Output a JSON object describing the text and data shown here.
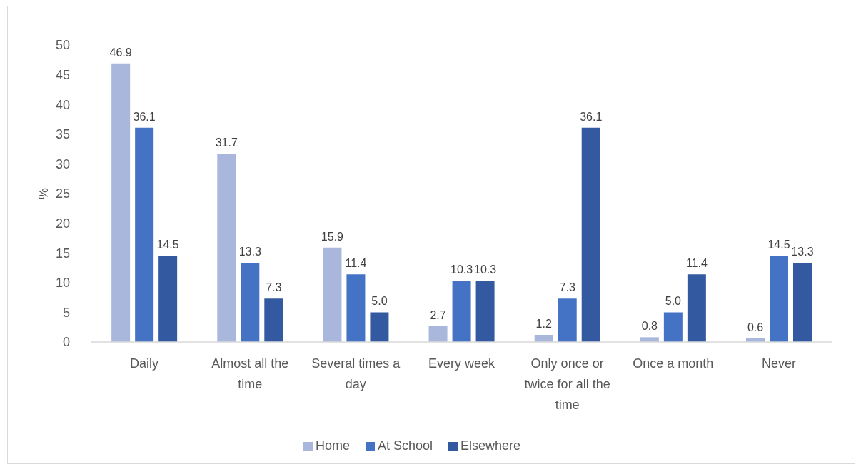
{
  "chart_data": {
    "type": "bar",
    "ylabel": "%",
    "categories": [
      "Daily",
      "Almost all the time",
      "Several times a day",
      "Every week",
      "Only once or twice for all the time",
      "Once a month",
      "Never"
    ],
    "series": [
      {
        "name": "Home",
        "color": "#a9b7dc",
        "values": [
          46.9,
          31.7,
          15.9,
          2.7,
          1.2,
          0.8,
          0.6
        ],
        "value_labels": [
          "46.9",
          "31.7",
          "15.9",
          "2.7",
          "1.2",
          "0.8",
          "0.6"
        ]
      },
      {
        "name": "At School",
        "color": "#4472c4",
        "values": [
          36.1,
          13.3,
          11.4,
          10.3,
          7.3,
          5.0,
          14.5
        ],
        "value_labels": [
          "36.1",
          "13.3",
          "11.4",
          "10.3",
          "7.3",
          "5.0",
          "14.5"
        ]
      },
      {
        "name": "Elsewhere",
        "color": "#335aa1",
        "values": [
          14.5,
          7.3,
          5.0,
          10.3,
          36.1,
          11.4,
          13.3
        ],
        "value_labels": [
          "14.5",
          "7.3",
          "5.0",
          "10.3",
          "36.1",
          "11.4",
          "13.3"
        ]
      }
    ],
    "ylim": [
      0,
      50
    ],
    "yticks": [
      0,
      5,
      10,
      15,
      20,
      25,
      30,
      35,
      40,
      45,
      50
    ],
    "grid": false,
    "legend": "bottom"
  }
}
